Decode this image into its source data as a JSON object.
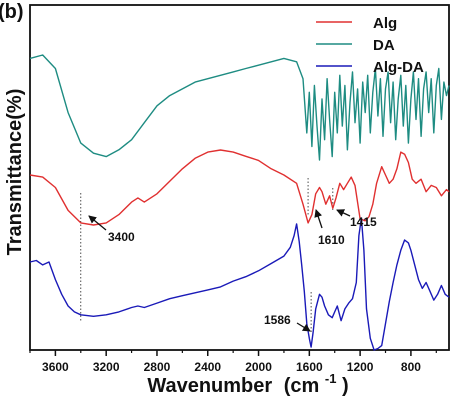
{
  "panel_label": "(b)",
  "chart_data": {
    "type": "line",
    "title": "",
    "xlabel": "Wavenumber",
    "xlabel_unit": "(cm",
    "xlabel_unit_sup": "-1",
    "xlabel_unit_end": ")",
    "ylabel": "Transmittance(%)",
    "xlim": [
      3800,
      500
    ],
    "x_reversed": true,
    "x_ticks": [
      3600,
      3200,
      2800,
      2400,
      2000,
      1600,
      1200,
      800
    ],
    "y_tick_labels_shown": false,
    "grid": false,
    "legend_position": "top-right",
    "legend": [
      "Alg",
      "DA",
      "Alg-DA"
    ],
    "colors": {
      "Alg": "#e03030",
      "DA": "#1e8c82",
      "Alg-DA": "#1a1ab8"
    },
    "series": [
      {
        "name": "DA",
        "x": [
          3800,
          3700,
          3600,
          3500,
          3400,
          3300,
          3200,
          3100,
          3000,
          2900,
          2800,
          2700,
          2600,
          2500,
          2400,
          2300,
          2200,
          2100,
          2000,
          1900,
          1800,
          1700,
          1650,
          1620,
          1600,
          1580,
          1560,
          1540,
          1520,
          1500,
          1480,
          1460,
          1440,
          1420,
          1400,
          1380,
          1360,
          1340,
          1320,
          1300,
          1280,
          1260,
          1240,
          1220,
          1200,
          1180,
          1160,
          1140,
          1120,
          1100,
          1080,
          1060,
          1040,
          1020,
          1000,
          980,
          960,
          940,
          920,
          900,
          880,
          860,
          840,
          820,
          800,
          780,
          760,
          740,
          720,
          700,
          680,
          660,
          640,
          620,
          600,
          580,
          560,
          540,
          520,
          500
        ],
        "y": [
          82,
          83,
          79,
          66,
          57,
          54,
          53,
          55,
          58,
          63,
          68,
          71,
          73,
          75,
          76,
          77,
          78,
          79,
          80,
          81,
          82,
          81,
          76,
          60,
          72,
          56,
          74,
          62,
          52,
          70,
          58,
          76,
          64,
          53,
          72,
          60,
          77,
          62,
          74,
          55,
          69,
          78,
          63,
          73,
          57,
          75,
          66,
          77,
          60,
          72,
          79,
          65,
          76,
          59,
          73,
          78,
          63,
          75,
          58,
          70,
          77,
          62,
          74,
          57,
          70,
          78,
          64,
          76,
          59,
          73,
          78,
          66,
          76,
          60,
          74,
          79,
          64,
          75,
          71,
          74
        ]
      },
      {
        "name": "Alg",
        "x": [
          3800,
          3700,
          3600,
          3500,
          3400,
          3300,
          3200,
          3100,
          3000,
          2950,
          2900,
          2800,
          2700,
          2600,
          2500,
          2400,
          2300,
          2200,
          2100,
          2000,
          1900,
          1800,
          1700,
          1650,
          1610,
          1580,
          1550,
          1520,
          1500,
          1470,
          1440,
          1415,
          1390,
          1360,
          1330,
          1300,
          1270,
          1240,
          1200,
          1160,
          1130,
          1100,
          1070,
          1030,
          1000,
          970,
          940,
          910,
          880,
          850,
          820,
          790,
          760,
          720,
          680,
          640,
          600,
          560,
          520,
          500
        ],
        "y": [
          44,
          43,
          38,
          27,
          21,
          20,
          21,
          25,
          31,
          33,
          31,
          35,
          41,
          47,
          52,
          55,
          56,
          55,
          53,
          51,
          47,
          44,
          40,
          30,
          21,
          25,
          35,
          38,
          36,
          30,
          34,
          28,
          33,
          40,
          37,
          40,
          43,
          39,
          23,
          22,
          24,
          30,
          40,
          48,
          44,
          40,
          42,
          47,
          55,
          54,
          50,
          42,
          40,
          42,
          36,
          39,
          38,
          34,
          37,
          36
        ]
      },
      {
        "name": "Alg-DA",
        "x": [
          3800,
          3750,
          3700,
          3650,
          3600,
          3550,
          3500,
          3450,
          3400,
          3300,
          3200,
          3100,
          3000,
          2950,
          2900,
          2800,
          2700,
          2600,
          2500,
          2400,
          2300,
          2200,
          2100,
          2000,
          1900,
          1800,
          1750,
          1720,
          1700,
          1680,
          1660,
          1640,
          1620,
          1600,
          1586,
          1570,
          1550,
          1520,
          1500,
          1480,
          1450,
          1420,
          1400,
          1380,
          1350,
          1320,
          1290,
          1260,
          1230,
          1210,
          1190,
          1170,
          1150,
          1120,
          1090,
          1060,
          1030,
          1000,
          970,
          940,
          910,
          880,
          850,
          820,
          800,
          770,
          740,
          710,
          680,
          650,
          620,
          590,
          560,
          530,
          500
        ],
        "y": [
          22,
          23,
          20,
          22,
          10,
          0,
          -8,
          -12,
          -14,
          -15,
          -14,
          -12,
          -9,
          -8,
          -9,
          -6,
          -3,
          -1,
          1,
          3,
          5,
          9,
          12,
          16,
          21,
          26,
          32,
          40,
          48,
          36,
          20,
          2,
          -20,
          -30,
          -36,
          -26,
          -10,
          0,
          -2,
          -8,
          -14,
          -16,
          -12,
          -8,
          -18,
          -10,
          -6,
          -3,
          8,
          40,
          52,
          30,
          -10,
          -30,
          -38,
          -37,
          -35,
          -20,
          -5,
          8,
          20,
          30,
          37,
          35,
          30,
          20,
          10,
          4,
          8,
          2,
          -4,
          0,
          6,
          0,
          -2
        ]
      }
    ],
    "annotations": [
      {
        "label": "3400",
        "x": 3400,
        "series": "Alg"
      },
      {
        "label": "1610",
        "x": 1610,
        "series": "Alg"
      },
      {
        "label": "1415",
        "x": 1415,
        "series": "Alg"
      },
      {
        "label": "1586",
        "x": 1586,
        "series": "Alg-DA"
      }
    ]
  }
}
